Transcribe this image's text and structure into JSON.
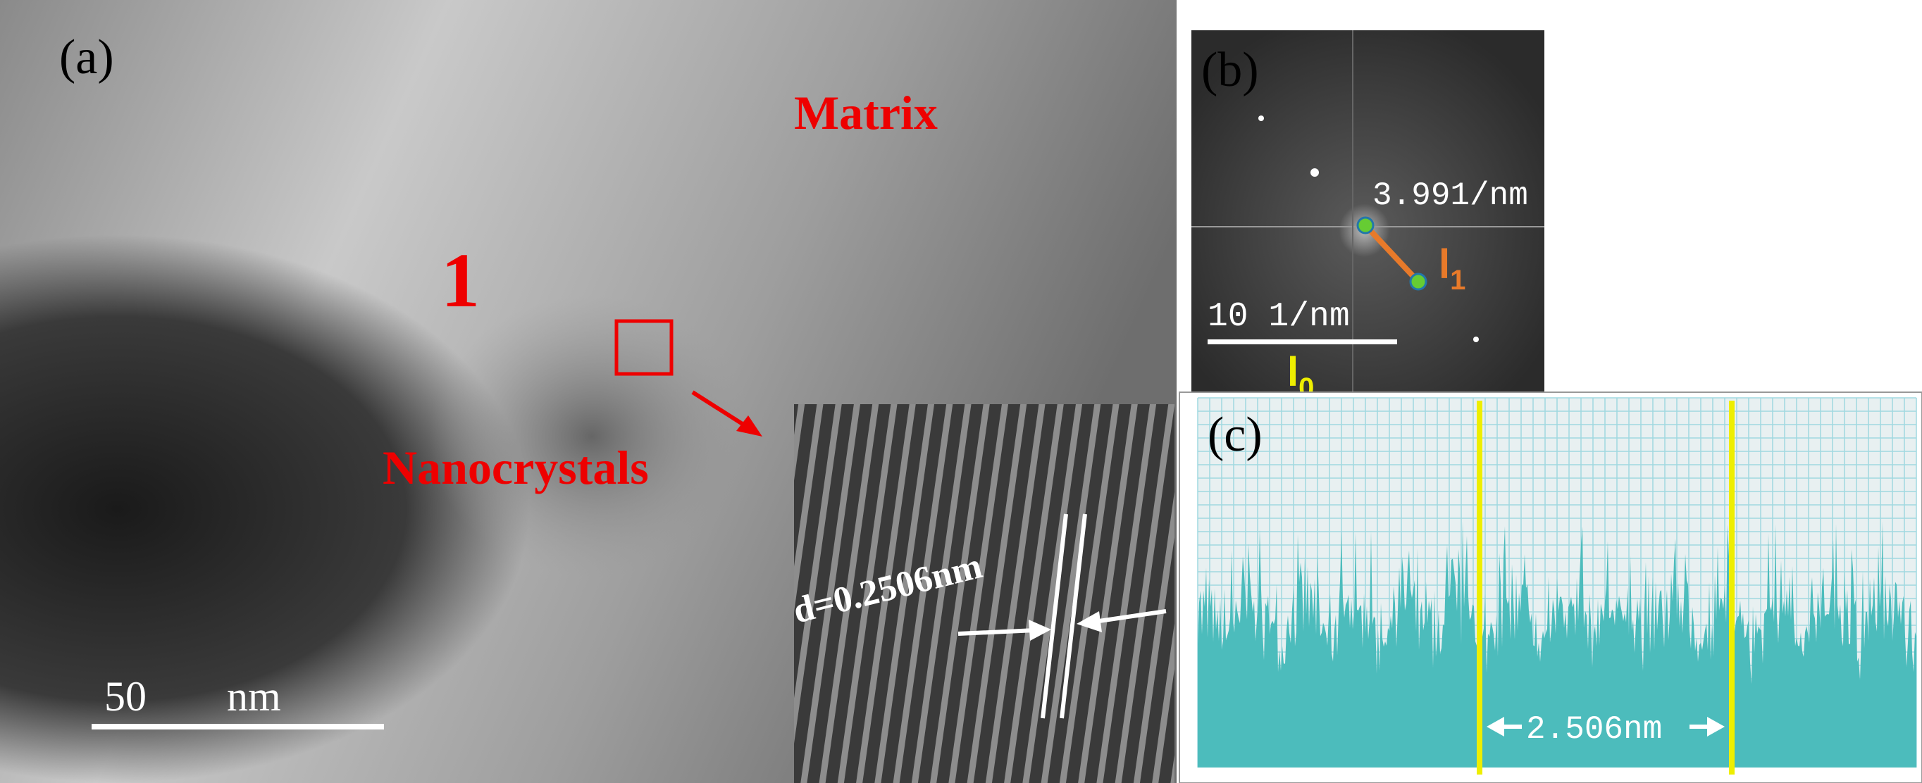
{
  "panel_a": {
    "label": "(a)",
    "matrix_label": "Matrix",
    "region_label": "1",
    "nanocrystals_label": "Nanocrystals",
    "d_spacing": "d=0.2506nm",
    "scale_value": "50",
    "scale_unit": "nm"
  },
  "panel_b": {
    "label": "(b)",
    "frequency": "3.991/nm",
    "l1": {
      "main": "l",
      "sub": "1"
    },
    "scale": "10 1/nm",
    "l0": {
      "main": "l",
      "sub": "0"
    }
  },
  "panel_c": {
    "label": "(c)",
    "distance": "2.506nm"
  }
}
